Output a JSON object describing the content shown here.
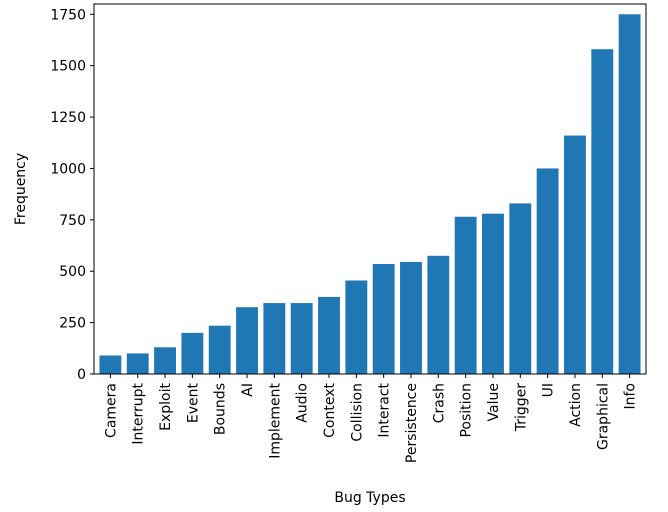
{
  "chart_data": {
    "type": "bar",
    "xlabel": "Bug Types",
    "ylabel": "Frequency",
    "ylim": [
      0,
      1800
    ],
    "yticks": [
      0,
      250,
      500,
      750,
      1000,
      1250,
      1500,
      1750
    ],
    "grid": false,
    "bar_color": "#1f77b4",
    "categories": [
      "Camera",
      "Interrupt",
      "Exploit",
      "Event",
      "Bounds",
      "AI",
      "Implement",
      "Audio",
      "Context",
      "Collision",
      "Interact",
      "Persistence",
      "Crash",
      "Position",
      "Value",
      "Trigger",
      "UI",
      "Action",
      "Graphical",
      "Info"
    ],
    "values": [
      90,
      100,
      130,
      200,
      235,
      325,
      345,
      345,
      375,
      455,
      535,
      545,
      575,
      765,
      780,
      830,
      1000,
      1160,
      1580,
      1750
    ]
  }
}
